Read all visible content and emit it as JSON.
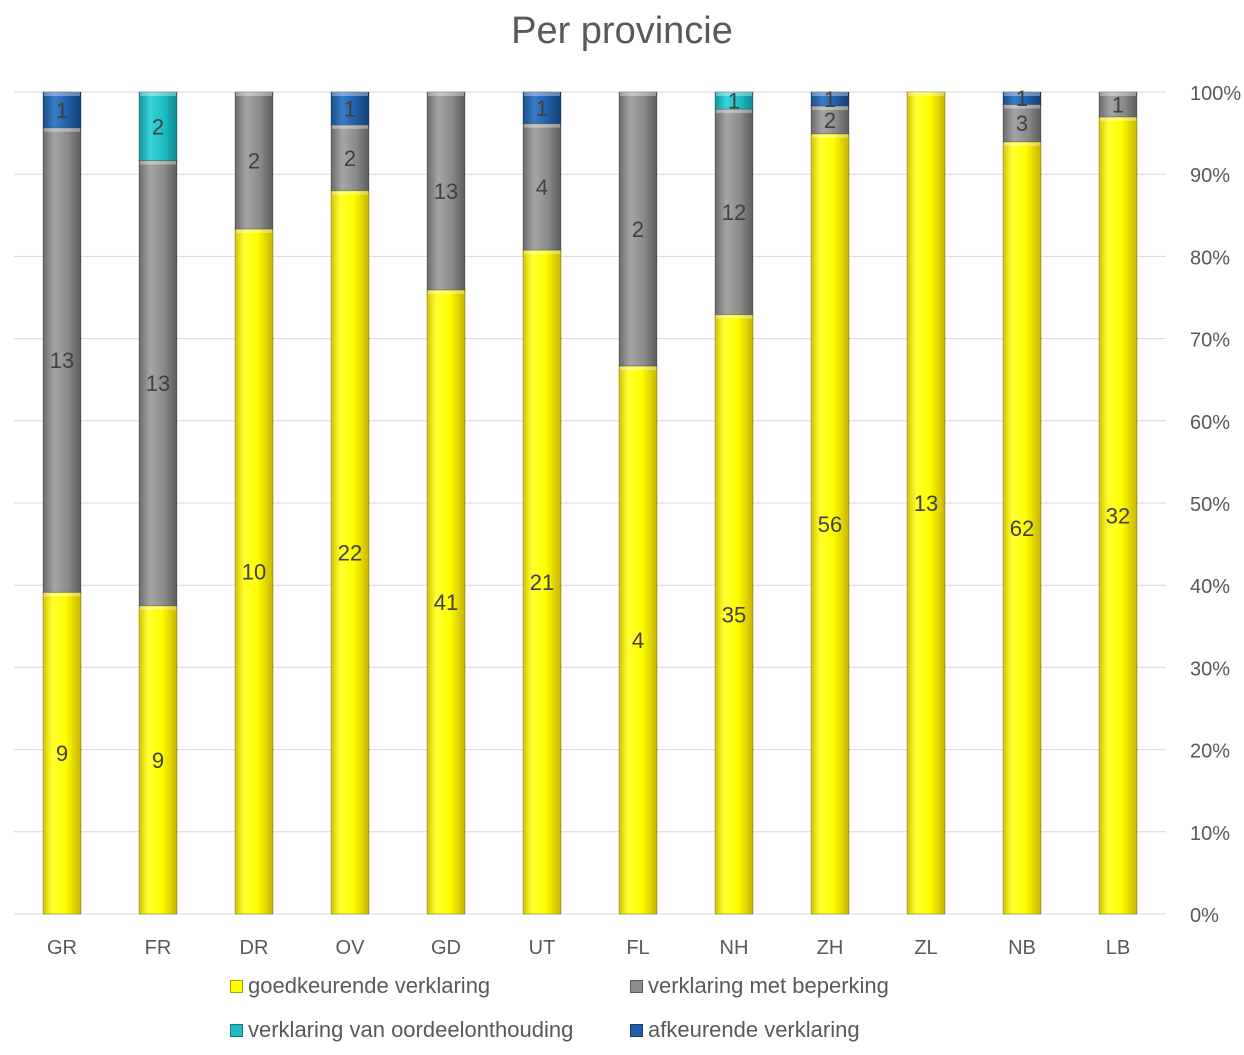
{
  "chart_data": {
    "type": "bar",
    "stacked": "percent",
    "title": "Per provincie",
    "categories": [
      "GR",
      "FR",
      "DR",
      "OV",
      "GD",
      "UT",
      "FL",
      "NH",
      "ZH",
      "ZL",
      "NB",
      "LB"
    ],
    "series": [
      {
        "name": "goedkeurende verklaring",
        "color": "#ffff00",
        "values": [
          9,
          9,
          10,
          22,
          41,
          21,
          4,
          35,
          56,
          13,
          62,
          32
        ]
      },
      {
        "name": "verklaring met beperking",
        "color": "#8c8c8c",
        "values": [
          13,
          13,
          2,
          2,
          13,
          4,
          2,
          12,
          2,
          0,
          3,
          1
        ]
      },
      {
        "name": "verklaring van oordeelonthouding",
        "color": "#1fbcc4",
        "values": [
          0,
          2,
          0,
          0,
          0,
          0,
          0,
          1,
          0,
          0,
          0,
          0
        ]
      },
      {
        "name": "afkeurende verklaring",
        "color": "#1f5fa8",
        "values": [
          1,
          0,
          0,
          1,
          0,
          1,
          0,
          0,
          1,
          0,
          1,
          0
        ]
      }
    ],
    "y_axis": {
      "position": "right",
      "ylim": [
        0,
        100
      ],
      "ticks": [
        "0%",
        "10%",
        "20%",
        "30%",
        "40%",
        "50%",
        "60%",
        "70%",
        "80%",
        "90%",
        "100%"
      ]
    },
    "grid": true,
    "legend_position": "bottom"
  }
}
